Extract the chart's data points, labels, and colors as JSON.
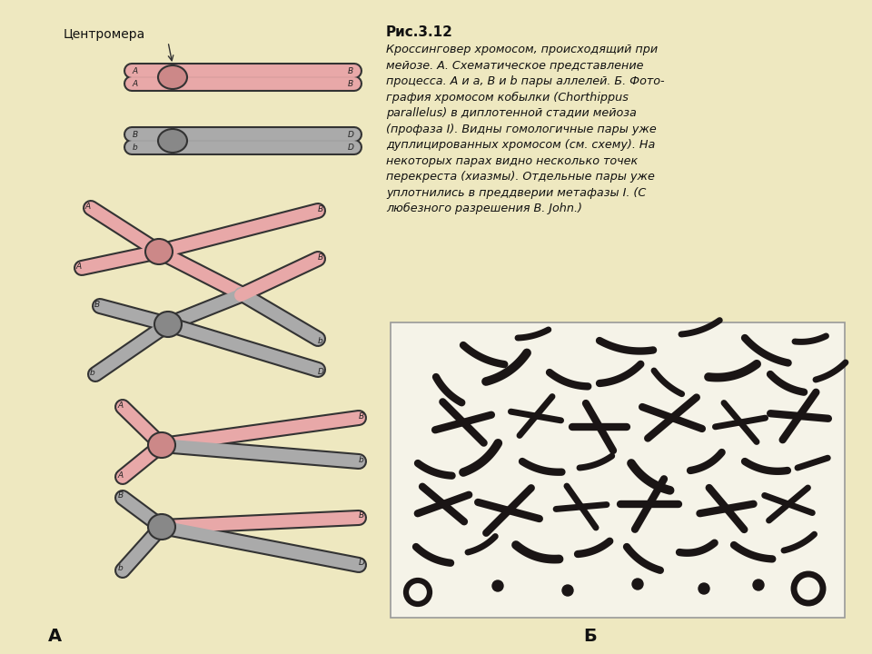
{
  "bg_color": "#eee8c0",
  "title": "Рис.3.12",
  "caption_lines": [
    "Кроссинговер хромосом, происходящий при",
    "мейозе. А. Схематическое представление",
    "процесса. А и а, В и b пары аллелей. Б. Фото-",
    "графия хромосом кобылки (Chorthippus",
    "parallelus) в диплотенной стадии мейоза",
    "(профаза I). Видны гомологичные пары уже",
    "дуплицированных хромосом (см. схему). На",
    "некоторых парах видно несколько точек",
    "перекреста (хиазмы). Отдельные пары уже",
    "уплотнились в преддверии метафазы I. (С",
    "любезного разрешения В. John.)"
  ],
  "label_A": "А",
  "label_B": "Б",
  "centromere_label": "Центромера",
  "pink": "#e8a8a8",
  "gray": "#aaaaaa",
  "pink_c": "#cc8888",
  "gray_c": "#888888",
  "dark": "#2a2020",
  "outline": "#333333",
  "photo_bg": "#f5f3e8"
}
